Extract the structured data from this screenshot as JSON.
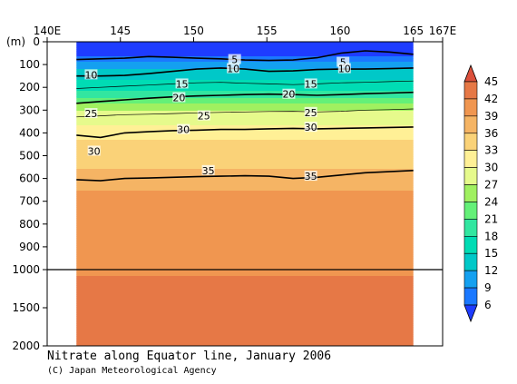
{
  "caption": "Nitrate along Equator line, January 2006",
  "credit": "(C) Japan Meteorological Agency",
  "chart_data": {
    "type": "heatmap",
    "title": "Nitrate along Equator line, January 2006",
    "x_ticks": [
      {
        "value": 140,
        "label": "140E"
      },
      {
        "value": 145,
        "label": "145"
      },
      {
        "value": 150,
        "label": "150"
      },
      {
        "value": 155,
        "label": "155"
      },
      {
        "value": 160,
        "label": "160"
      },
      {
        "value": 165,
        "label": "165"
      },
      {
        "value": 167,
        "label": "167E"
      }
    ],
    "xlim": [
      140,
      167
    ],
    "data_xlim": [
      142,
      165
    ],
    "y_unit_label": "(m)",
    "y_ticks_upper": [
      0,
      100,
      200,
      300,
      400,
      500,
      600,
      700,
      800,
      900,
      1000
    ],
    "y_ticks_lower": [
      1500,
      2000
    ],
    "ylim": [
      0,
      2000
    ],
    "y_break_depth": 1000,
    "colorbar": {
      "levels": [
        3,
        6,
        9,
        12,
        15,
        18,
        21,
        24,
        27,
        30,
        33,
        36,
        39,
        42,
        45
      ],
      "colors": [
        "#1e3cff",
        "#1a78ff",
        "#14a0f0",
        "#00c8c8",
        "#00dcb4",
        "#32e6a0",
        "#64f078",
        "#a0f060",
        "#e6fa8c",
        "#fff096",
        "#fad278",
        "#f5b464",
        "#f09650",
        "#e67846",
        "#dc503c"
      ]
    },
    "depth_profile": [
      {
        "depth": 0,
        "value": 1
      },
      {
        "depth": 50,
        "value": 2
      },
      {
        "depth": 80,
        "value": 5
      },
      {
        "depth": 100,
        "value": 8
      },
      {
        "depth": 150,
        "value": 11
      },
      {
        "depth": 200,
        "value": 14
      },
      {
        "depth": 250,
        "value": 19
      },
      {
        "depth": 300,
        "value": 24
      },
      {
        "depth": 380,
        "value": 28
      },
      {
        "depth": 450,
        "value": 31
      },
      {
        "depth": 550,
        "value": 33
      },
      {
        "depth": 620,
        "value": 35.5
      },
      {
        "depth": 700,
        "value": 37
      },
      {
        "depth": 1000,
        "value": 38.5
      },
      {
        "depth": 1250,
        "value": 40
      },
      {
        "depth": 2000,
        "value": 42
      }
    ],
    "contour_lines": [
      {
        "value": 5,
        "depth": [
          78,
          75,
          72,
          65,
          68,
          72,
          75,
          80,
          82,
          80,
          70,
          50,
          40,
          45,
          55
        ],
        "bold": true
      },
      {
        "value": 10,
        "depth": [
          150,
          150,
          148,
          140,
          130,
          120,
          115,
          120,
          130,
          128,
          122,
          120,
          120,
          118,
          115
        ],
        "bold": true
      },
      {
        "value": 15,
        "depth": [
          205,
          200,
          195,
          190,
          185,
          180,
          178,
          182,
          185,
          188,
          185,
          180,
          178,
          175,
          172
        ],
        "bold": false
      },
      {
        "value": 20,
        "depth": [
          270,
          262,
          255,
          248,
          242,
          238,
          235,
          232,
          230,
          232,
          235,
          232,
          228,
          225,
          222
        ],
        "bold": true
      },
      {
        "value": 25,
        "depth": [
          330,
          325,
          320,
          318,
          315,
          312,
          310,
          308,
          306,
          305,
          308,
          305,
          300,
          298,
          295
        ],
        "bold": false
      },
      {
        "value": 30,
        "depth": [
          410,
          420,
          400,
          395,
          390,
          388,
          385,
          385,
          382,
          380,
          382,
          380,
          378,
          376,
          374
        ],
        "bold": true
      },
      {
        "value": 35,
        "depth": [
          605,
          610,
          600,
          598,
          595,
          592,
          590,
          588,
          590,
          600,
          595,
          585,
          575,
          570,
          565
        ],
        "bold": true
      }
    ],
    "contour_labels": [
      {
        "text": "5",
        "lon": 152.8,
        "depth": 78
      },
      {
        "text": "10",
        "lon": 152.7,
        "depth": 118
      },
      {
        "text": "5",
        "lon": 160.2,
        "depth": 90
      },
      {
        "text": "10",
        "lon": 160.3,
        "depth": 118
      },
      {
        "text": "10",
        "lon": 143.0,
        "depth": 145
      },
      {
        "text": "15",
        "lon": 149.2,
        "depth": 185
      },
      {
        "text": "15",
        "lon": 158.0,
        "depth": 185
      },
      {
        "text": "20",
        "lon": 149.0,
        "depth": 245
      },
      {
        "text": "20",
        "lon": 156.5,
        "depth": 230
      },
      {
        "text": "25",
        "lon": 143.0,
        "depth": 315
      },
      {
        "text": "25",
        "lon": 150.7,
        "depth": 325
      },
      {
        "text": "25",
        "lon": 158.0,
        "depth": 310
      },
      {
        "text": "30",
        "lon": 149.3,
        "depth": 385
      },
      {
        "text": "30",
        "lon": 158.0,
        "depth": 375
      },
      {
        "text": "30",
        "lon": 143.2,
        "depth": 480
      },
      {
        "text": "35",
        "lon": 151.0,
        "depth": 565
      },
      {
        "text": "35",
        "lon": 158.0,
        "depth": 590
      }
    ]
  }
}
